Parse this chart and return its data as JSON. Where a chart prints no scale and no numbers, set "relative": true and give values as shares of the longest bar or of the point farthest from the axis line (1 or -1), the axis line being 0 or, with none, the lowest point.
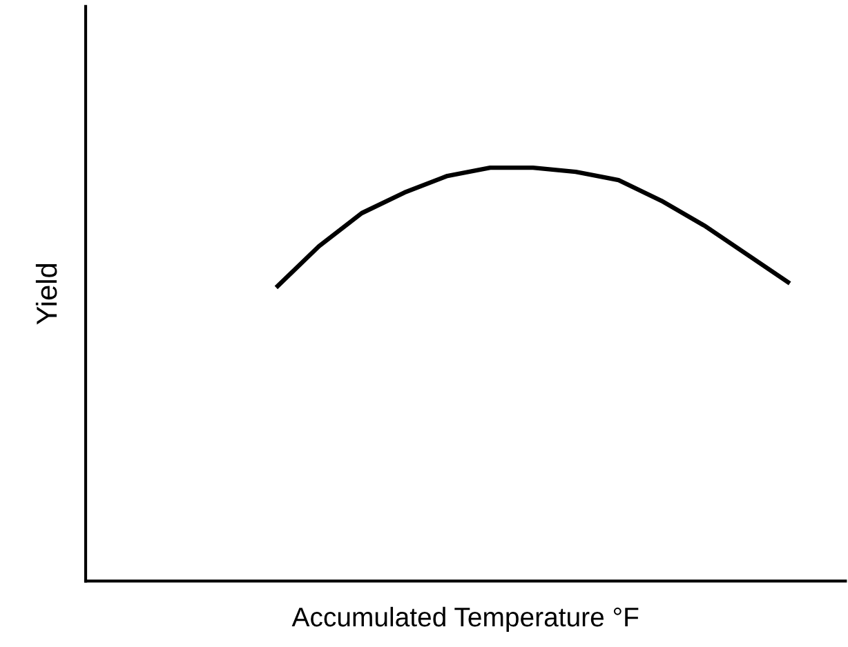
{
  "chart_data": {
    "type": "line",
    "relative": true,
    "xlabel": "Accumulated Temperature °F",
    "ylabel": "Yield",
    "categories": [
      null,
      null,
      null,
      null,
      null,
      null,
      null,
      null,
      null,
      null,
      null,
      null,
      null,
      null,
      null,
      null,
      null,
      null
    ],
    "series": [
      {
        "color": "#000000",
        "values": [
          null,
          null,
          null,
          null,
          0.71,
          0.81,
          0.89,
          0.94,
          0.98,
          1.0,
          1.0,
          0.99,
          0.97,
          0.92,
          0.86,
          0.79,
          0.72,
          null
        ]
      }
    ],
    "grid": false,
    "legend": false,
    "marker": "none",
    "line_style": "solid"
  }
}
